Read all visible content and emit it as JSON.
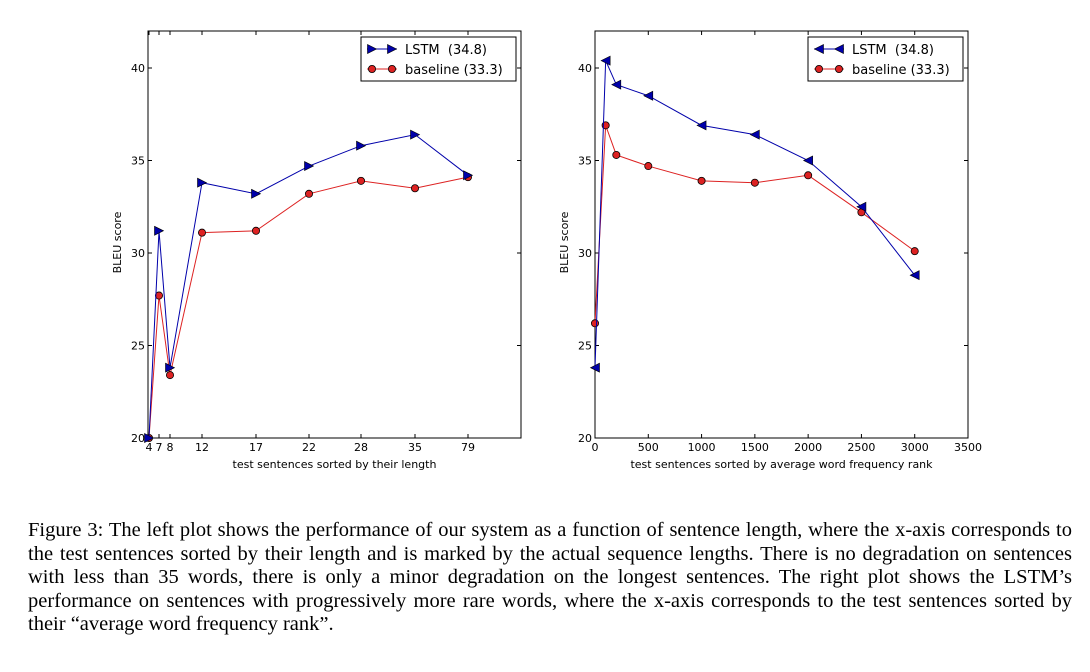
{
  "chart_data": [
    {
      "type": "line",
      "xlabel": "test sentences sorted by their length",
      "ylabel": "BLEU score",
      "ylim": [
        20,
        42
      ],
      "yticks": [
        20,
        25,
        30,
        35,
        40
      ],
      "categories": [
        "4",
        "7",
        "8",
        "12",
        "17",
        "22",
        "28",
        "35",
        "79"
      ],
      "grid": false,
      "legend": "top-right",
      "series": [
        {
          "name": "LSTM  (34.8)",
          "color": "#0000aa",
          "marker": "triangle-right",
          "values": [
            20.0,
            31.2,
            23.8,
            33.8,
            33.2,
            34.7,
            35.8,
            36.4,
            34.2
          ]
        },
        {
          "name": "baseline (33.3)",
          "color": "#dd2222",
          "marker": "circle",
          "values": [
            20.0,
            27.7,
            23.4,
            31.1,
            31.2,
            33.2,
            33.9,
            33.5,
            34.1
          ]
        }
      ]
    },
    {
      "type": "line",
      "xlabel": "test sentences sorted by average word frequency rank",
      "ylabel": "BLEU score",
      "xlim": [
        0,
        3500
      ],
      "xticks": [
        0,
        500,
        1000,
        1500,
        2000,
        2500,
        3000,
        3500
      ],
      "ylim": [
        20,
        42
      ],
      "yticks": [
        20,
        25,
        30,
        35,
        40
      ],
      "grid": false,
      "legend": "top-right",
      "series": [
        {
          "name": "LSTM  (34.8)",
          "color": "#0000aa",
          "marker": "triangle-left",
          "x": [
            0,
            100,
            200,
            500,
            1000,
            1500,
            2000,
            2500,
            3000
          ],
          "values": [
            23.8,
            40.4,
            39.1,
            38.5,
            36.9,
            36.4,
            35.0,
            32.5,
            28.8
          ]
        },
        {
          "name": "baseline (33.3)",
          "color": "#dd2222",
          "marker": "circle",
          "x": [
            0,
            100,
            200,
            500,
            1000,
            1500,
            2000,
            2500,
            3000
          ],
          "values": [
            26.2,
            36.9,
            35.3,
            34.7,
            33.9,
            33.8,
            34.2,
            32.2,
            30.1
          ]
        }
      ]
    }
  ],
  "caption": "Figure 3:  The left plot shows the performance of our system as a function of sentence length, where the x-axis corresponds to the test sentences sorted by their length and is marked by the actual sequence lengths. There is no degradation on sentences with less than 35 words, there is only a minor degradation on the longest sentences.  The right plot shows the LSTM’s performance on sentences with progressively more rare words, where the x-axis corresponds to the test sentences sorted by their “average word frequency rank”."
}
